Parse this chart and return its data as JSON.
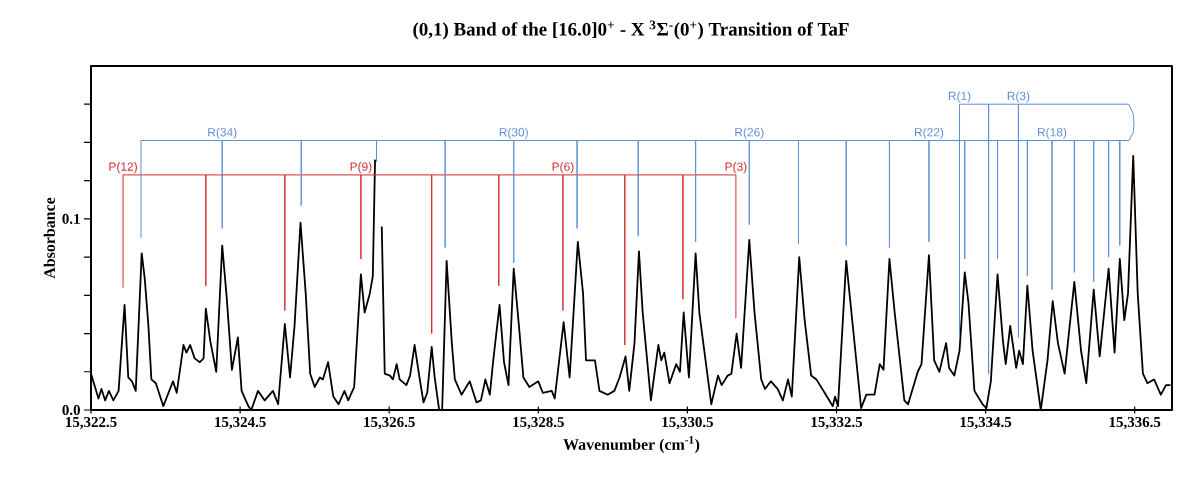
{
  "chart_data": {
    "type": "line",
    "title": "(0,1) Band of the [16.0]0$^{+}$ - X $^{3}$Σ$^{-}$(0$^{+}$) Transition of TaF",
    "xlabel": "Wavenumber  (cm$^{-1}$)",
    "ylabel": "Absorbance",
    "xlim": [
      15322.5,
      15337.0
    ],
    "ylim": [
      0,
      0.18
    ],
    "xticks": [
      {
        "value": 15322.5,
        "label": "15,322.5"
      },
      {
        "value": 15324.5,
        "label": "15,324.5"
      },
      {
        "value": 15326.5,
        "label": "15,326.5"
      },
      {
        "value": 15328.5,
        "label": "15,328.5"
      },
      {
        "value": 15330.5,
        "label": "15,330.5"
      },
      {
        "value": 15332.5,
        "label": "15,332.5"
      },
      {
        "value": 15334.5,
        "label": "15,334.5"
      },
      {
        "value": 15336.5,
        "label": "15,336.5"
      }
    ],
    "yticks": [
      {
        "value": 0,
        "label": "0.0"
      },
      {
        "value": 0.02,
        "label": null
      },
      {
        "value": 0.04,
        "label": null
      },
      {
        "value": 0.06,
        "label": null
      },
      {
        "value": 0.08,
        "label": null
      },
      {
        "value": 0.1,
        "label": "0.1"
      },
      {
        "value": 0.12,
        "label": null
      },
      {
        "value": 0.14,
        "label": null
      },
      {
        "value": 0.16,
        "label": null
      }
    ],
    "marker": "none",
    "series": [
      {
        "color": "#000000",
        "x": [
          15322.5,
          15322.6,
          15322.64,
          15322.69,
          15322.74,
          15322.8,
          15322.87,
          15322.95,
          15323.0,
          15323.05,
          15323.1,
          15323.18,
          15323.22,
          15323.27,
          15323.31,
          15323.37,
          15323.47,
          15323.54,
          15323.6,
          15323.65,
          15323.74,
          15323.78,
          15323.83,
          15323.89,
          15323.96,
          15324.01,
          15324.04,
          15324.1,
          15324.18,
          15324.26,
          15324.32,
          15324.39,
          15324.47,
          15324.52,
          15324.61,
          15324.65,
          15324.74,
          15324.83,
          15324.94,
          15325.01,
          15325.1,
          15325.17,
          15325.23,
          15325.31,
          15325.38,
          15325.44,
          15325.5,
          15325.57,
          15325.61,
          15325.68,
          15325.75,
          15325.82,
          15325.9,
          15325.95,
          15326.03,
          15326.12,
          15326.17,
          15326.24,
          15326.28,
          15326.31,
          15326.33,
          15326.36,
          15326.4,
          15326.44,
          15326.51,
          15326.55,
          15326.6,
          15326.64,
          15326.73,
          15326.78,
          15326.84,
          15326.91,
          15326.96,
          15327.01,
          15327.07,
          15327.11,
          15327.17,
          15327.21,
          15327.27,
          15327.34,
          15327.38,
          15327.47,
          15327.58,
          15327.67,
          15327.73,
          15327.79,
          15327.85,
          15327.89,
          15327.98,
          15328.04,
          15328.1,
          15328.17,
          15328.24,
          15328.3,
          15328.38,
          15328.5,
          15328.56,
          15328.68,
          15328.72,
          15328.84,
          15328.92,
          15329.03,
          15329.1,
          15329.14,
          15329.26,
          15329.32,
          15329.43,
          15329.52,
          15329.59,
          15329.67,
          15329.72,
          15329.79,
          15329.85,
          15329.9,
          15330.01,
          15330.11,
          15330.15,
          15330.19,
          15330.26,
          15330.35,
          15330.4,
          15330.45,
          15330.52,
          15330.61,
          15330.66,
          15330.82,
          15330.91,
          15330.96,
          15331.04,
          15331.09,
          15331.16,
          15331.22,
          15331.33,
          15331.4,
          15331.49,
          15331.54,
          15331.62,
          15331.71,
          15331.78,
          15331.85,
          15331.9,
          15332.0,
          15332.07,
          15332.16,
          15332.23,
          15332.34,
          15332.45,
          15332.48,
          15332.52,
          15332.63,
          15332.7,
          15332.83,
          15332.9,
          15333.01,
          15333.08,
          15333.13,
          15333.21,
          15333.28,
          15333.41,
          15333.46,
          15333.59,
          15333.64,
          15333.74,
          15333.81,
          15333.88,
          15333.97,
          15334.01,
          15334.08,
          15334.15,
          15334.22,
          15334.27,
          15334.35,
          15334.46,
          15334.51,
          15334.57,
          15334.66,
          15334.73,
          15334.77,
          15334.83,
          15334.91,
          15334.95,
          15335.0,
          15335.06,
          15335.13,
          15335.24,
          15335.33,
          15335.4,
          15335.47,
          15335.56,
          15335.69,
          15335.78,
          15335.85,
          15335.95,
          15336.03,
          15336.15,
          15336.23,
          15336.3,
          15336.36,
          15336.41,
          15336.48,
          15336.54,
          15336.61,
          15336.67,
          15336.76,
          15336.85,
          15336.92,
          15336.98
        ],
        "values": [
          0.019,
          0.006,
          0.011,
          0.005,
          0.01,
          0.005,
          0.01,
          0.055,
          0.017,
          0.015,
          0.01,
          0.082,
          0.069,
          0.044,
          0.016,
          0.014,
          0.002,
          0.009,
          0.015,
          0.009,
          0.034,
          0.03,
          0.034,
          0.027,
          0.025,
          0.027,
          0.053,
          0.036,
          0.02,
          0.086,
          0.059,
          0.021,
          0.038,
          0.01,
          0.002,
          0.0,
          0.01,
          0.005,
          0.01,
          0.003,
          0.045,
          0.017,
          0.044,
          0.098,
          0.061,
          0.019,
          0.012,
          0.017,
          0.016,
          0.025,
          0.007,
          0.003,
          0.01,
          0.005,
          0.012,
          0.071,
          0.051,
          0.061,
          0.07,
          0.131,
          null,
          null,
          0.096,
          0.019,
          0.018,
          0.016,
          0.024,
          0.016,
          0.013,
          0.018,
          0.034,
          0.016,
          0.004,
          0.009,
          0.033,
          0.017,
          0.0,
          0.0,
          0.078,
          0.035,
          0.016,
          0.008,
          0.015,
          0.004,
          0.005,
          0.016,
          0.008,
          0.024,
          0.055,
          0.025,
          0.013,
          0.074,
          0.044,
          0.017,
          0.012,
          0.015,
          0.009,
          0.01,
          0.006,
          0.046,
          0.017,
          0.088,
          0.061,
          0.026,
          0.026,
          0.01,
          0.008,
          0.01,
          0.017,
          0.028,
          0.01,
          0.035,
          0.083,
          0.051,
          0.005,
          0.034,
          0.026,
          0.03,
          0.014,
          0.024,
          0.02,
          0.051,
          0.017,
          0.082,
          0.051,
          0.003,
          0.018,
          0.013,
          0.018,
          0.019,
          0.04,
          0.022,
          0.089,
          0.051,
          0.016,
          0.011,
          0.015,
          0.011,
          0.005,
          0.016,
          0.007,
          0.08,
          0.048,
          0.018,
          0.016,
          0.009,
          0.002,
          0.007,
          0.002,
          0.078,
          0.051,
          0.001,
          0.008,
          0.008,
          0.024,
          0.021,
          0.079,
          0.051,
          0.005,
          0.003,
          0.02,
          0.024,
          0.081,
          0.026,
          0.02,
          0.035,
          0.022,
          0.018,
          0.031,
          0.072,
          0.056,
          0.01,
          0.003,
          0.001,
          0.015,
          0.071,
          0.037,
          0.024,
          0.044,
          0.022,
          0.031,
          0.024,
          0.065,
          0.031,
          0.0,
          0.026,
          0.057,
          0.035,
          0.019,
          0.067,
          0.031,
          0.014,
          0.063,
          0.028,
          0.074,
          0.03,
          0.079,
          0.047,
          0.061,
          0.133,
          0.061,
          0.019,
          0.014,
          0.016,
          0.008,
          0.013,
          0.013
        ]
      },
      {
        "color": "#d42a2a",
        "x": [
          15322.93,
          15322.93,
          15324.04,
          15324.04,
          15324.04,
          15325.1,
          15325.1,
          15325.1,
          15326.12,
          15326.12,
          15326.12,
          15327.07,
          15327.07,
          15327.07,
          15327.97,
          15327.97,
          15327.97,
          15328.83,
          15328.83,
          15328.83,
          15329.66,
          15329.66,
          15329.66,
          15330.44,
          15330.44,
          15330.44,
          15331.15,
          15331.15
        ],
        "values": [
          0.064,
          0.123,
          0.123,
          0.065,
          0.123,
          0.123,
          0.052,
          0.123,
          0.123,
          0.079,
          0.123,
          0.123,
          0.04,
          0.123,
          0.123,
          0.065,
          0.123,
          0.123,
          0.052,
          0.123,
          0.123,
          0.034,
          0.123,
          0.123,
          0.058,
          0.123,
          0.123,
          0.048
        ]
      },
      {
        "color": "#5b8fd4",
        "x": [
          15334.15,
          15334.15,
          15334.54,
          15334.54,
          15334.54,
          15334.94,
          15334.94,
          15334.94,
          15336.42,
          15336.48,
          15336.49,
          15336.48,
          15336.42,
          15336.3,
          15336.3,
          15336.3,
          15336.15,
          15336.15,
          15336.15,
          15335.95,
          15335.95,
          15335.95,
          15335.69,
          15335.69,
          15335.69,
          15335.39,
          15335.39,
          15335.39,
          15335.06,
          15335.06,
          15335.06,
          15334.66,
          15334.66,
          15334.66,
          15334.22,
          15334.22,
          15334.22,
          15333.74,
          15333.74,
          15333.74,
          15333.21,
          15333.21,
          15333.21,
          15332.63,
          15332.63,
          15332.63,
          15331.99,
          15331.99,
          15331.99,
          15331.33,
          15331.33,
          15331.33,
          15330.61,
          15330.61,
          15330.61,
          15329.84,
          15329.84,
          15329.84,
          15329.02,
          15329.02,
          15329.02,
          15328.17,
          15328.17,
          15328.17,
          15327.25,
          15327.25,
          15327.25,
          15326.33,
          15326.33,
          15326.33,
          15325.32,
          15325.32,
          15325.32,
          15324.26,
          15324.26,
          15324.26,
          15323.17,
          15323.17
        ],
        "values": [
          0.038,
          0.16,
          0.16,
          0.019,
          0.16,
          0.16,
          0.038,
          0.16,
          0.16,
          0.155,
          0.15,
          0.145,
          0.141,
          0.141,
          0.086,
          0.141,
          0.141,
          0.08,
          0.141,
          0.141,
          0.067,
          0.141,
          0.141,
          0.072,
          0.141,
          0.141,
          0.063,
          0.141,
          0.141,
          0.07,
          0.141,
          0.141,
          0.079,
          0.141,
          0.141,
          0.079,
          0.141,
          0.141,
          0.088,
          0.141,
          0.141,
          0.085,
          0.141,
          0.141,
          0.086,
          0.141,
          0.141,
          0.087,
          0.141,
          0.141,
          0.097,
          0.141,
          0.141,
          0.088,
          0.141,
          0.141,
          0.091,
          0.141,
          0.141,
          0.095,
          0.141,
          0.141,
          0.077,
          0.141,
          0.141,
          0.085,
          0.141,
          0.141,
          0.13,
          0.141,
          0.141,
          0.107,
          0.141,
          0.141,
          0.095,
          0.141,
          0.141,
          0.09
        ]
      }
    ],
    "annotations": [
      {
        "text": "P(12)",
        "x": 15322.93,
        "y": 0.123
      },
      {
        "text": "P(9)",
        "x": 15326.12,
        "y": 0.123
      },
      {
        "text": "P(6)",
        "x": 15328.83,
        "y": 0.123
      },
      {
        "text": "P(3)",
        "x": 15331.15,
        "y": 0.123
      },
      {
        "text": "R(34)",
        "x": 15324.26,
        "y": 0.141
      },
      {
        "text": "R(30)",
        "x": 15328.17,
        "y": 0.141
      },
      {
        "text": "R(26)",
        "x": 15331.33,
        "y": 0.141
      },
      {
        "text": "R(22)",
        "x": 15333.74,
        "y": 0.141
      },
      {
        "text": "R(18)",
        "x": 15335.39,
        "y": 0.141
      },
      {
        "text": "R(1)",
        "x": 15334.15,
        "y": 0.16
      },
      {
        "text": "R(3)",
        "x": 15334.94,
        "y": 0.16
      }
    ]
  }
}
